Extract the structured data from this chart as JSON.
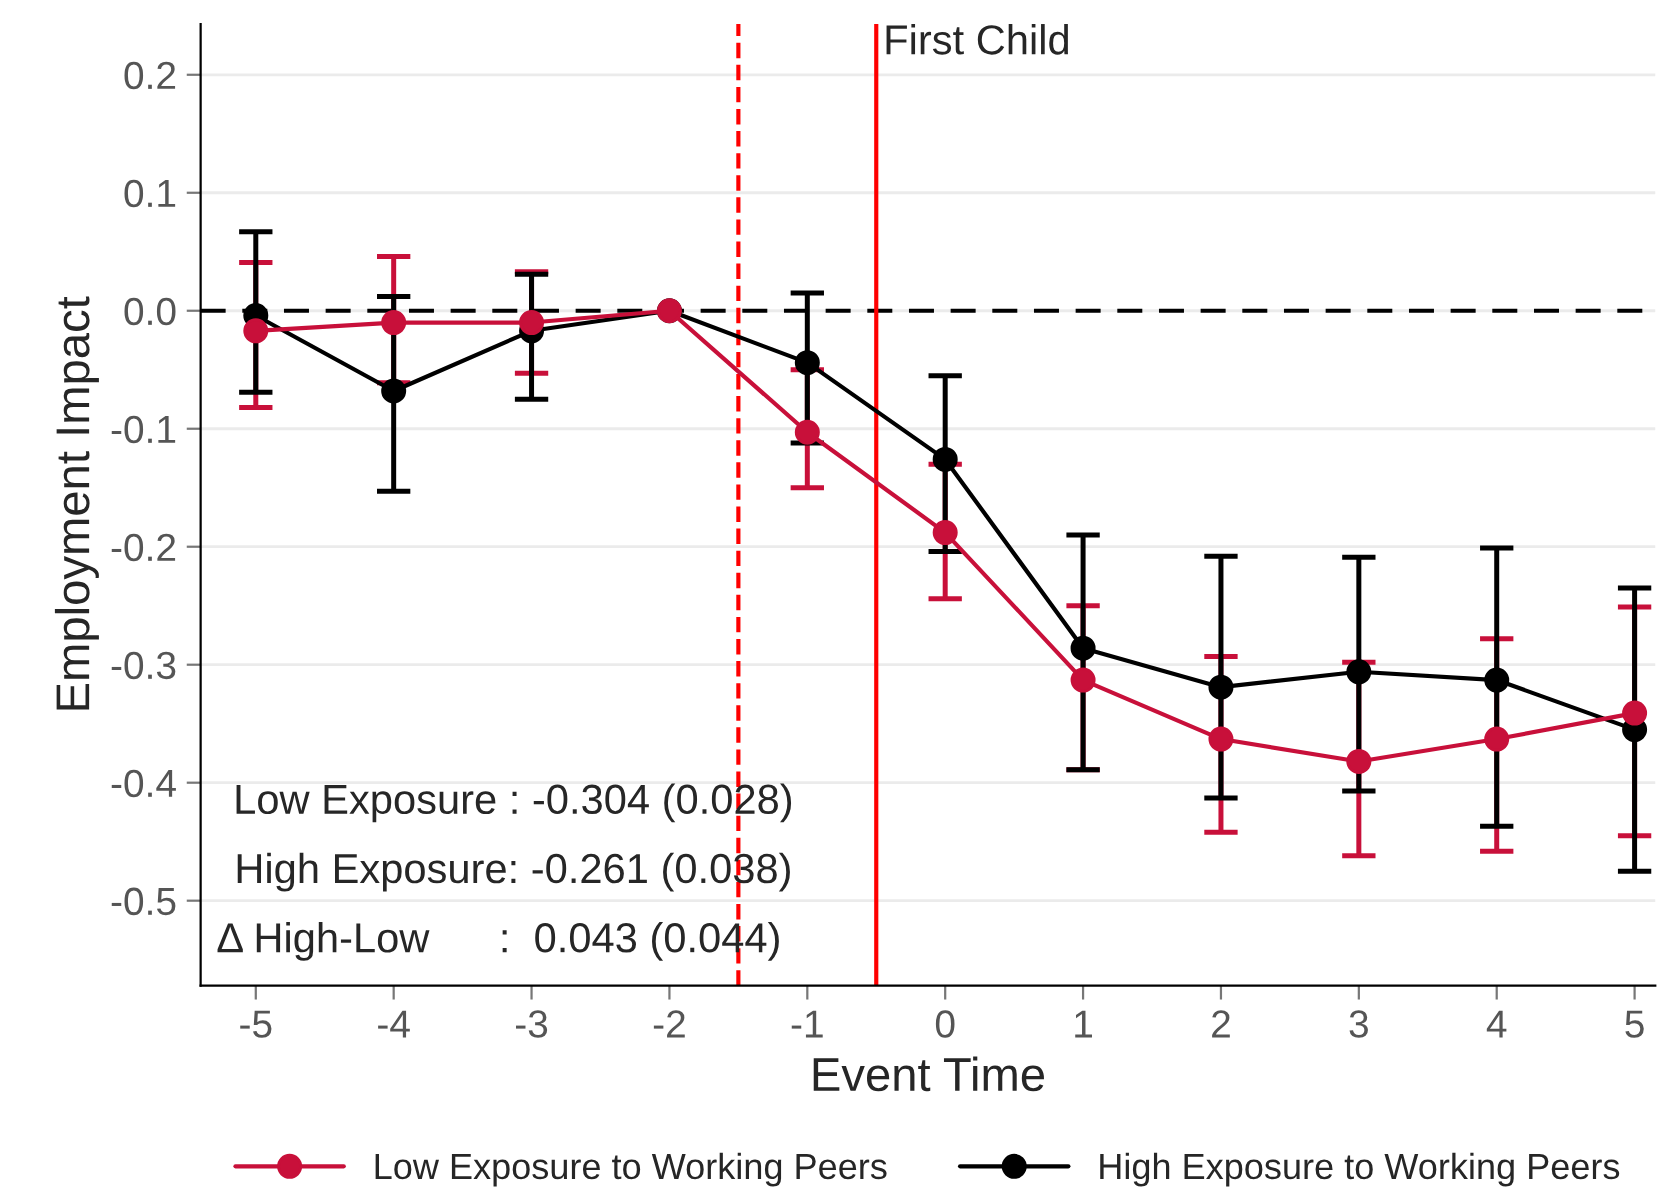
{
  "chart_data": {
    "type": "line",
    "xlabel": "Event Time",
    "ylabel": "Employment Impact",
    "x": [
      -5,
      -4,
      -3,
      -2,
      -1,
      0,
      1,
      2,
      3,
      4,
      5
    ],
    "series": [
      {
        "name": "Low Exposure to Working Peers",
        "color": "#c8103a",
        "values": [
          -0.017,
          -0.01,
          -0.01,
          0,
          -0.103,
          -0.188,
          -0.313,
          -0.363,
          -0.382,
          -0.363,
          -0.341
        ],
        "errors": [
          [
            -0.082,
            0.041
          ],
          [
            -0.061,
            0.046
          ],
          [
            -0.053,
            0.033
          ],
          null,
          [
            -0.15,
            -0.05
          ],
          [
            -0.244,
            -0.13
          ],
          [
            -0.389,
            -0.25
          ],
          [
            -0.442,
            -0.293
          ],
          [
            -0.462,
            -0.298
          ],
          [
            -0.458,
            -0.278
          ],
          [
            -0.445,
            -0.251
          ]
        ]
      },
      {
        "name": "High Exposure to Working Peers",
        "color": "#000000",
        "values": [
          -0.004,
          -0.068,
          -0.017,
          0,
          -0.044,
          -0.126,
          -0.286,
          -0.319,
          -0.306,
          -0.313,
          -0.355
        ],
        "errors": [
          [
            -0.069,
            0.067
          ],
          [
            -0.153,
            0.012
          ],
          [
            -0.075,
            0.031
          ],
          null,
          [
            -0.112,
            0.015
          ],
          [
            -0.204,
            -0.055
          ],
          [
            -0.389,
            -0.19
          ],
          [
            -0.413,
            -0.208
          ],
          [
            -0.407,
            -0.209
          ],
          [
            -0.437,
            -0.201
          ],
          [
            -0.475,
            -0.235
          ]
        ]
      }
    ],
    "xlim": [
      -5.4,
      5.15
    ],
    "ylim": [
      -0.572,
      0.243
    ],
    "xticks": [
      {
        "value": -5,
        "label": "-5"
      },
      {
        "value": -4,
        "label": "-4"
      },
      {
        "value": -3,
        "label": "-3"
      },
      {
        "value": -2,
        "label": "-2"
      },
      {
        "value": -1,
        "label": "-1"
      },
      0,
      1,
      2,
      3,
      4,
      5
    ],
    "yticks": [
      {
        "value": -0.5,
        "label": "-0.5"
      },
      {
        "value": -0.4,
        "label": "-0.4"
      },
      {
        "value": -0.3,
        "label": "-0.3"
      },
      {
        "value": -0.2,
        "label": "-0.2"
      },
      {
        "value": -0.1,
        "label": "-0.1"
      },
      {
        "value": 0,
        "label": "0.0"
      },
      0.1,
      0.2
    ],
    "ref_lines": [
      {
        "axis": "y",
        "value": 0,
        "color": "#000000",
        "line_style": "dashed"
      },
      {
        "axis": "x",
        "value": -1.5,
        "color": "#ff0000",
        "line_style": "dashed"
      },
      {
        "axis": "x",
        "value": -0.5,
        "color": "#ff0000",
        "line_style": "solid",
        "label": "First Child"
      }
    ],
    "annotations": [
      "Low Exposure : -0.304 (0.028)",
      "High Exposure: -0.261 (0.038)",
      "Δ High-Low      :  0.043 (0.044)"
    ],
    "grid": "y",
    "legend": "bottom",
    "marker": "circle",
    "line_style": "solid"
  }
}
